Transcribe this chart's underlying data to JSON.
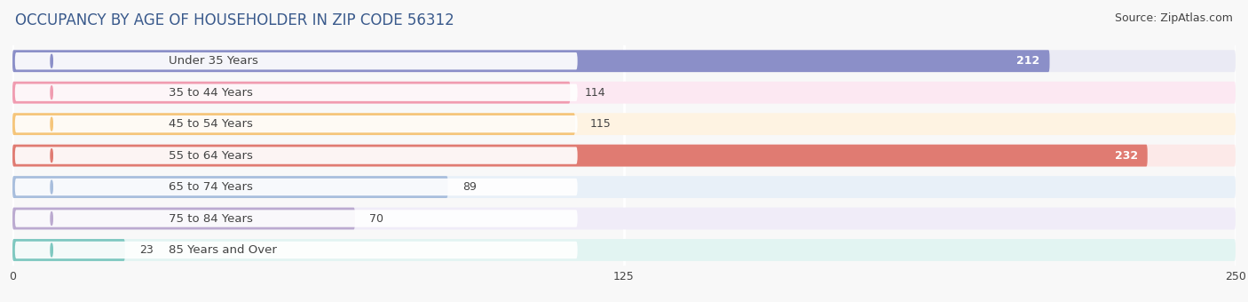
{
  "title": "OCCUPANCY BY AGE OF HOUSEHOLDER IN ZIP CODE 56312",
  "source": "Source: ZipAtlas.com",
  "categories": [
    "Under 35 Years",
    "35 to 44 Years",
    "45 to 54 Years",
    "55 to 64 Years",
    "65 to 74 Years",
    "75 to 84 Years",
    "85 Years and Over"
  ],
  "values": [
    212,
    114,
    115,
    232,
    89,
    70,
    23
  ],
  "bar_colors": [
    "#8b8fc8",
    "#f09cb0",
    "#f5c57a",
    "#e07b72",
    "#a8bedd",
    "#bbaad0",
    "#7ec8c0"
  ],
  "bar_bg_colors": [
    "#eaeaf4",
    "#fce8f2",
    "#fef3e2",
    "#fce9e8",
    "#e8f0f8",
    "#f0ecf8",
    "#e2f4f2"
  ],
  "label_bg_color": "#ffffff",
  "xlim": [
    0,
    250
  ],
  "xticks": [
    0,
    125,
    250
  ],
  "title_fontsize": 12,
  "source_fontsize": 9,
  "label_fontsize": 9.5,
  "value_fontsize": 9,
  "background_color": "#f8f8f8",
  "grid_color": "#ffffff",
  "text_color": "#444444",
  "title_color": "#3a5a8c"
}
